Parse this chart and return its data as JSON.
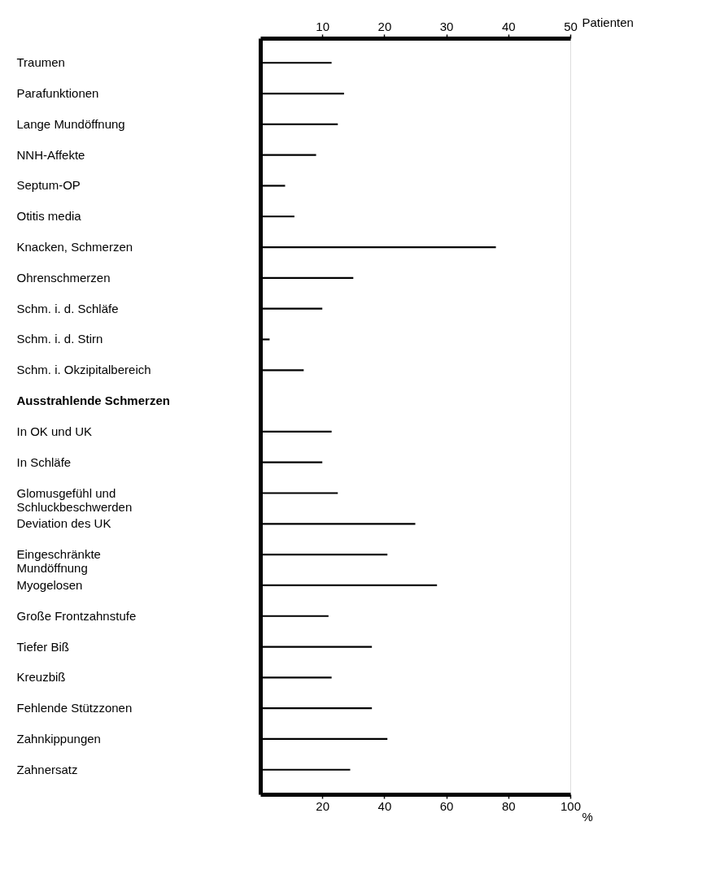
{
  "chart_data": {
    "type": "bar",
    "orientation": "horizontal",
    "color": "#000000",
    "categories": [
      "Traumen",
      "Parafunktionen",
      "Lange Mundöffnung",
      "NNH-Affekte",
      "Septum-OP",
      "Otitis media",
      "Knacken, Schmerzen",
      "Ohrenschmerzen",
      "Schm. i. d. Schläfe",
      "Schm. i. d. Stirn",
      "Schm. i. Okzipitalbereich",
      "Ausstrahlende Schmerzen",
      "In OK und UK",
      "In Schläfe",
      "Glomusgefühl und\nSchluckbeschwerden",
      "Deviation des UK",
      "Eingeschränkte\nMundöffnung",
      "Myogelosen",
      "Große Frontzahnstufe",
      "Tiefer Biß",
      "Kreuzbiß",
      "Fehlende Stützzonen",
      "Zahnkippungen",
      "Zahnersatz"
    ],
    "values": [
      23,
      27,
      25,
      18,
      8,
      11,
      76,
      30,
      20,
      3,
      14,
      null,
      23,
      20,
      25,
      50,
      41,
      57,
      22,
      36,
      23,
      36,
      41,
      29
    ],
    "xlim": [
      0,
      100
    ],
    "xticks": [
      20,
      40,
      60,
      80,
      100
    ],
    "xlabel": "%",
    "x2lim": [
      0,
      50
    ],
    "x2ticks": [
      10,
      20,
      30,
      40,
      50
    ],
    "x2label": "Patienten"
  }
}
